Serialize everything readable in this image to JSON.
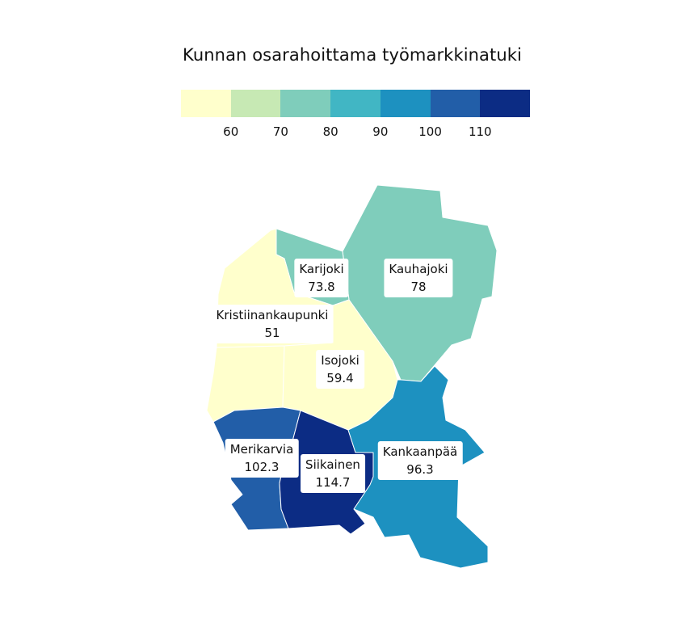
{
  "title": "Kunnan osarahoittama työmarkkinatuki",
  "legend": {
    "colors": [
      "#ffffcc",
      "#c7e9b4",
      "#7fcdbb",
      "#41b6c4",
      "#1d91c0",
      "#225ea8",
      "#0c2c84"
    ],
    "ticks": [
      "60",
      "70",
      "80",
      "90",
      "100",
      "110"
    ]
  },
  "municipalities": [
    {
      "name": "Karijoki",
      "value": "73.8",
      "color": "#7fcdbb"
    },
    {
      "name": "Kauhajoki",
      "value": "78",
      "color": "#7fcdbb"
    },
    {
      "name": "Kristiinankaupunki",
      "value": "51",
      "color": "#ffffcc"
    },
    {
      "name": "Isojoki",
      "value": "59.4",
      "color": "#ffffcc"
    },
    {
      "name": "Merikarvia",
      "value": "102.3",
      "color": "#225ea8"
    },
    {
      "name": "Siikainen",
      "value": "114.7",
      "color": "#0c2c84"
    },
    {
      "name": "Kankaanpää",
      "value": "96.3",
      "color": "#1d91c0"
    }
  ]
}
